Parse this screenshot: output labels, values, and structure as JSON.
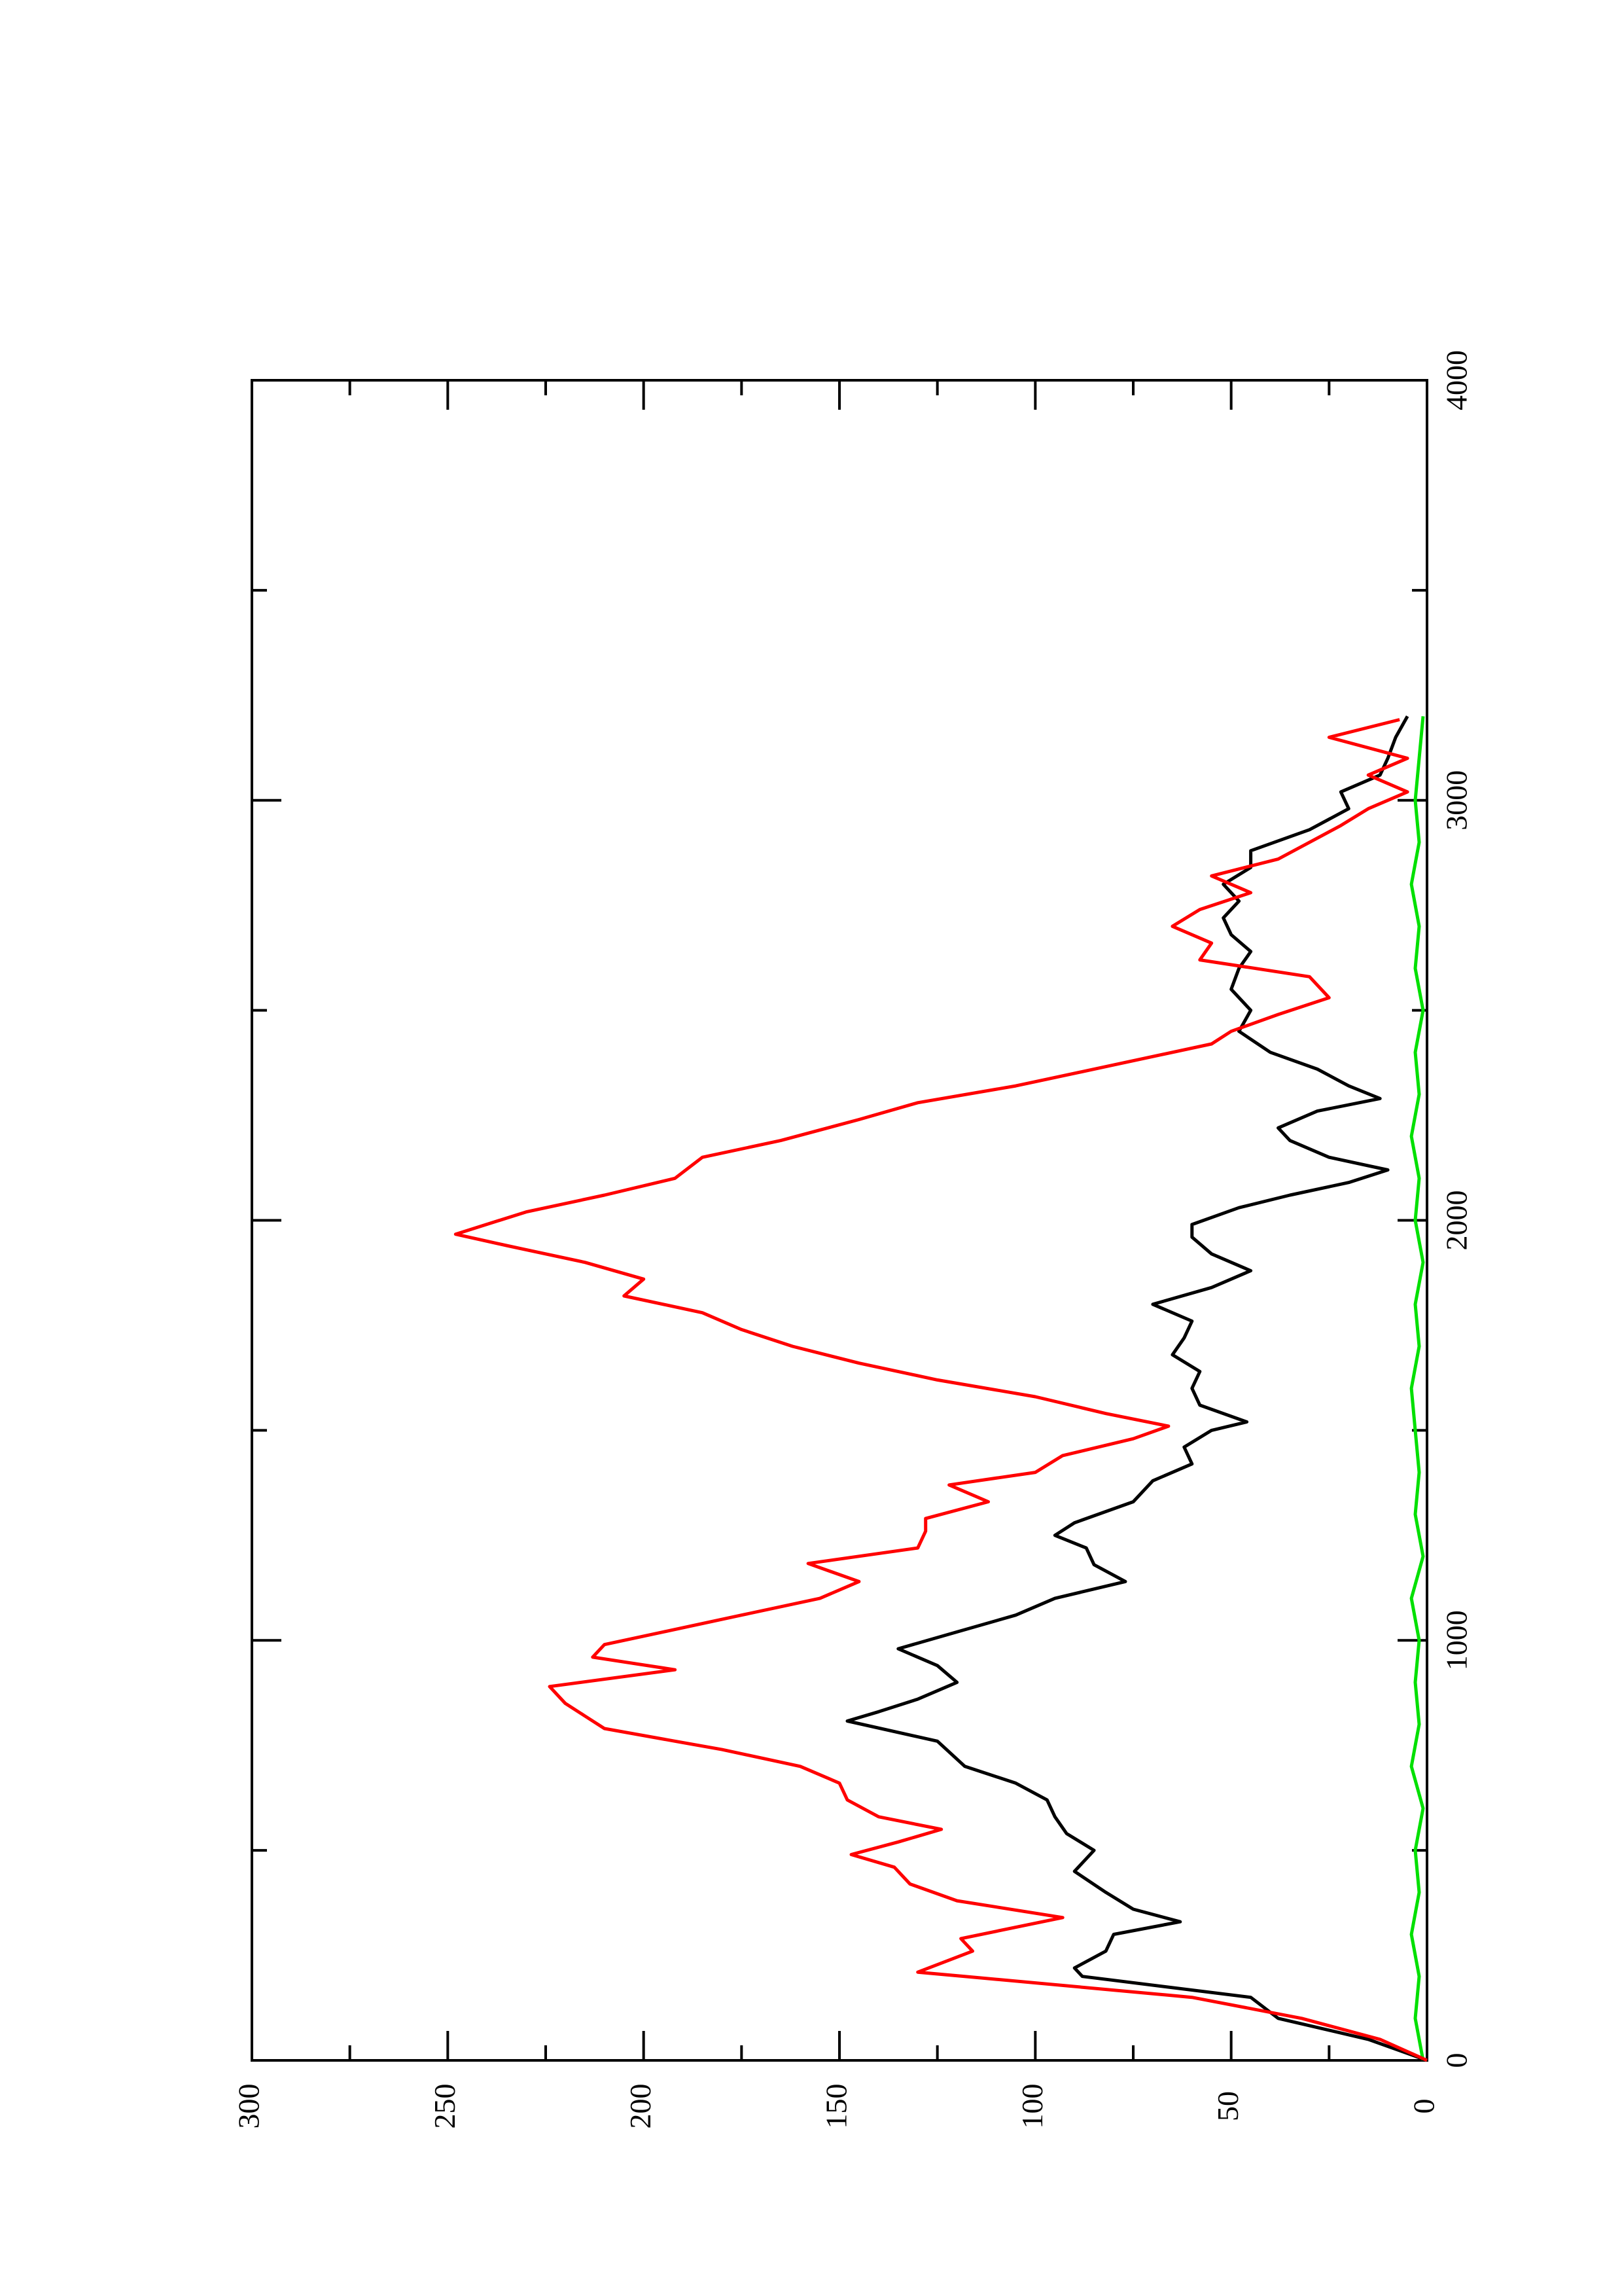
{
  "chart_data": {
    "type": "line",
    "xlim": [
      0,
      4000
    ],
    "xticks": [
      0,
      1000,
      2000,
      3000,
      4000
    ],
    "xminorticks": [
      500,
      1500,
      2500,
      3500
    ],
    "ylim": [
      0,
      300
    ],
    "yticks": [
      0,
      50,
      100,
      150,
      200,
      250,
      300
    ],
    "yminorticks": [
      25,
      75,
      125,
      175,
      225,
      275
    ],
    "rotation": -90,
    "series": [
      {
        "color": "#000000",
        "x": [
          0,
          50,
          100,
          150,
          200,
          220,
          260,
          300,
          330,
          360,
          400,
          450,
          500,
          540,
          580,
          620,
          660,
          700,
          760,
          808,
          830,
          860,
          900,
          940,
          980,
          1020,
          1060,
          1100,
          1140,
          1180,
          1220,
          1250,
          1280,
          1330,
          1380,
          1420,
          1460,
          1500,
          1520,
          1560,
          1600,
          1640,
          1680,
          1720,
          1760,
          1800,
          1840,
          1880,
          1920,
          1960,
          1990,
          2030,
          2060,
          2090,
          2120,
          2150,
          2190,
          2220,
          2260,
          2290,
          2320,
          2360,
          2400,
          2450,
          2500,
          2550,
          2600,
          2640,
          2680,
          2720,
          2760,
          2800,
          2840,
          2880,
          2930,
          2980,
          3020,
          3060,
          3100,
          3150,
          3200
        ],
        "values": [
          0,
          15,
          38,
          45,
          88,
          90,
          82,
          80,
          63,
          75,
          82,
          90,
          85,
          92,
          95,
          97,
          105,
          118,
          125,
          148,
          140,
          130,
          120,
          125,
          135,
          120,
          105,
          95,
          77,
          85,
          87,
          95,
          90,
          75,
          70,
          60,
          62,
          55,
          46,
          58,
          60,
          58,
          65,
          62,
          60,
          70,
          55,
          45,
          55,
          60,
          60,
          48,
          35,
          20,
          10,
          25,
          35,
          38,
          28,
          12,
          20,
          28,
          40,
          48,
          45,
          50,
          48,
          45,
          50,
          52,
          48,
          52,
          45,
          45,
          30,
          20,
          22,
          12,
          10,
          8,
          5
        ]
      },
      {
        "color": "#ff0000",
        "x": [
          0,
          50,
          100,
          150,
          200,
          210,
          260,
          290,
          340,
          380,
          420,
          460,
          490,
          520,
          550,
          580,
          620,
          660,
          700,
          740,
          760,
          790,
          820,
          850,
          890,
          930,
          960,
          990,
          1020,
          1060,
          1100,
          1140,
          1183,
          1220,
          1260,
          1290,
          1330,
          1370,
          1400,
          1440,
          1480,
          1510,
          1540,
          1580,
          1620,
          1660,
          1700,
          1740,
          1780,
          1820,
          1860,
          1900,
          1940,
          1967,
          2020,
          2060,
          2100,
          2150,
          2190,
          2240,
          2280,
          2320,
          2370,
          2420,
          2450,
          2490,
          2530,
          2580,
          2620,
          2660,
          2700,
          2740,
          2780,
          2820,
          2860,
          2900,
          2940,
          2980,
          3020,
          3060,
          3100,
          3150,
          3192
        ],
        "values": [
          0,
          12,
          32,
          60,
          118,
          130,
          116,
          119,
          93,
          120,
          132,
          136,
          147,
          135,
          124,
          140,
          148,
          150,
          160,
          180,
          192,
          210,
          215,
          220,
          224,
          192,
          213,
          210,
          195,
          175,
          155,
          145,
          158,
          130,
          128,
          128,
          112,
          122,
          100,
          93,
          75,
          66,
          82,
          100,
          125,
          145,
          162,
          175,
          185,
          205,
          200,
          215,
          235,
          248,
          230,
          210,
          192,
          185,
          165,
          145,
          130,
          105,
          80,
          55,
          50,
          38,
          25,
          30,
          58,
          55,
          65,
          58,
          45,
          55,
          38,
          30,
          22,
          15,
          5,
          15,
          5,
          25,
          7
        ]
      },
      {
        "color": "#00e000",
        "x": [
          0,
          100,
          200,
          300,
          400,
          500,
          600,
          700,
          800,
          900,
          1000,
          1100,
          1200,
          1300,
          1400,
          1500,
          1600,
          1700,
          1800,
          1900,
          2000,
          2100,
          2200,
          2300,
          2400,
          2500,
          2600,
          2700,
          2800,
          2900,
          3000,
          3100,
          3200
        ],
        "values": [
          1,
          3,
          2,
          4,
          2,
          3,
          1,
          4,
          2,
          3,
          2,
          4,
          1,
          3,
          2,
          3,
          4,
          2,
          3,
          1,
          3,
          2,
          4,
          2,
          3,
          1,
          3,
          2,
          4,
          2,
          3,
          2,
          1
        ]
      }
    ]
  }
}
